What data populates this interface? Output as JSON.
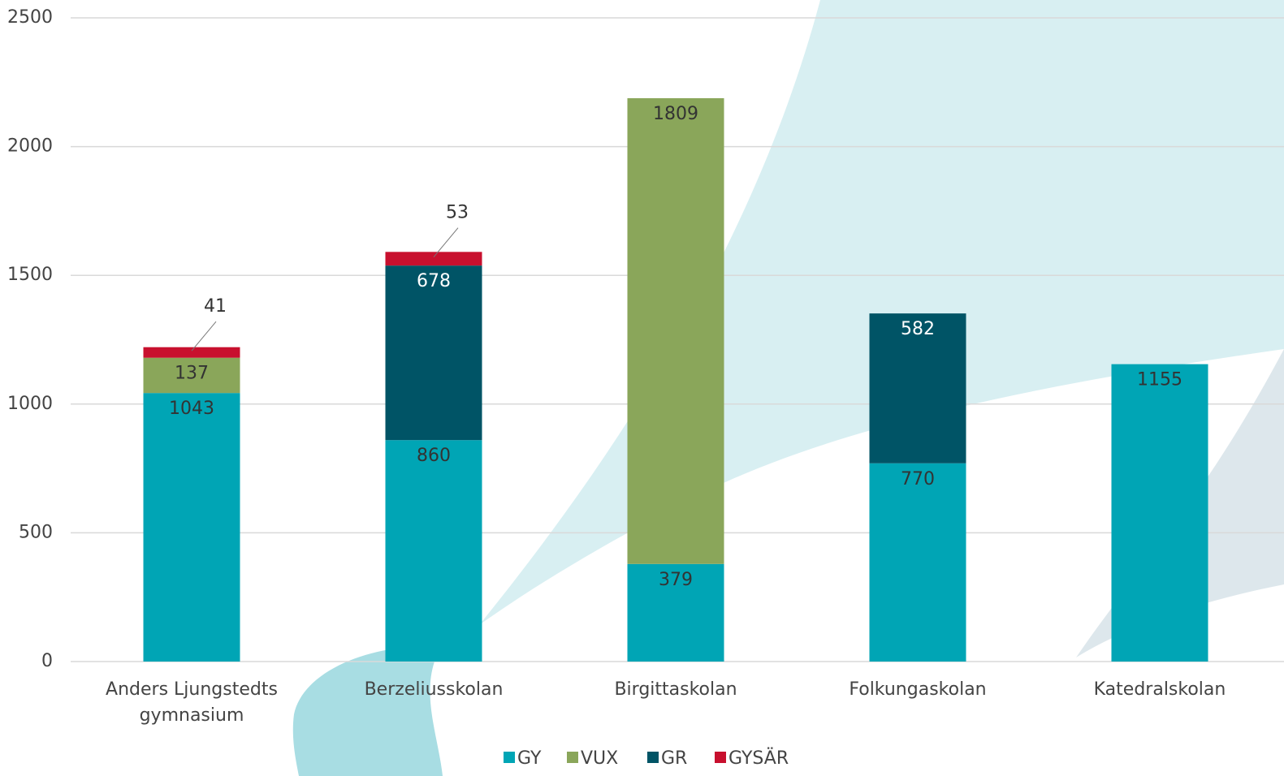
{
  "chart_data": {
    "type": "stacked_bar",
    "categories": [
      "Anders Ljungstedts gymnasium",
      "Berzeliusskolan",
      "Birgittaskolan",
      "Folkungaskolan",
      "Katedralskolan"
    ],
    "series": [
      {
        "name": "GY",
        "color": "#00a5b5",
        "values": [
          1043,
          860,
          379,
          770,
          1155
        ]
      },
      {
        "name": "VUX",
        "color": "#8aa65a",
        "values": [
          137,
          null,
          1809,
          null,
          null
        ]
      },
      {
        "name": "GR",
        "color": "#005466",
        "values": [
          null,
          678,
          null,
          582,
          null
        ]
      },
      {
        "name": "GYSÄR",
        "color": "#c8102e",
        "values": [
          41,
          53,
          null,
          null,
          null
        ]
      }
    ],
    "ylim": [
      0,
      2500
    ],
    "yticks": [
      0,
      500,
      1000,
      1500,
      2000,
      2500
    ],
    "grid": true,
    "legend": "bottom"
  }
}
